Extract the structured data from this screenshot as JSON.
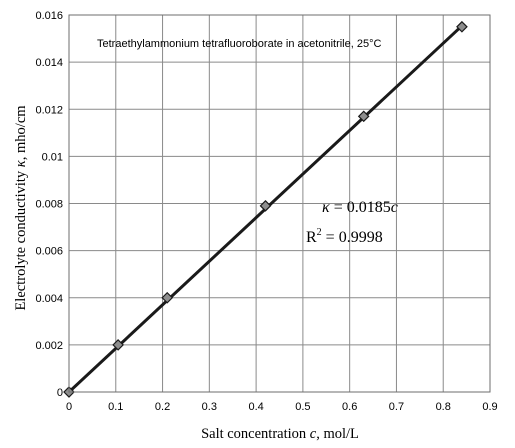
{
  "chart_data": {
    "type": "scatter",
    "title": "Tetraethylammonium tetrafluoroborate in acetonitrile, 25°C",
    "xlabel": {
      "pre": "Salt concentration ",
      "var": "c",
      "post": ", mol/L"
    },
    "ylabel": {
      "pre": "Electrolyte conductivity  ",
      "var": "κ",
      "post": ", mho/cm"
    },
    "xlim": [
      0,
      0.9
    ],
    "ylim": [
      0,
      0.016
    ],
    "x_ticks": [
      "0",
      "0.1",
      "0.2",
      "0.3",
      "0.4",
      "0.5",
      "0.6",
      "0.7",
      "0.8",
      "0.9"
    ],
    "y_ticks": [
      "0",
      "0.002",
      "0.004",
      "0.006",
      "0.008",
      "0.01",
      "0.012",
      "0.014",
      "0.016"
    ],
    "grid": true,
    "series": [
      {
        "x": [
          0,
          0.105,
          0.21,
          0.42,
          0.63,
          0.84
        ],
        "y": [
          0,
          0.002,
          0.004,
          0.0079,
          0.0117,
          0.0155
        ]
      }
    ],
    "trendline": {
      "slope": 0.0185,
      "x_range": [
        0,
        0.84
      ],
      "equation": {
        "var": "κ",
        "text": " = 0.0185",
        "var2": "c"
      },
      "r2": {
        "base": "R",
        "sup": "2",
        "text": " = 0.9998"
      }
    }
  }
}
